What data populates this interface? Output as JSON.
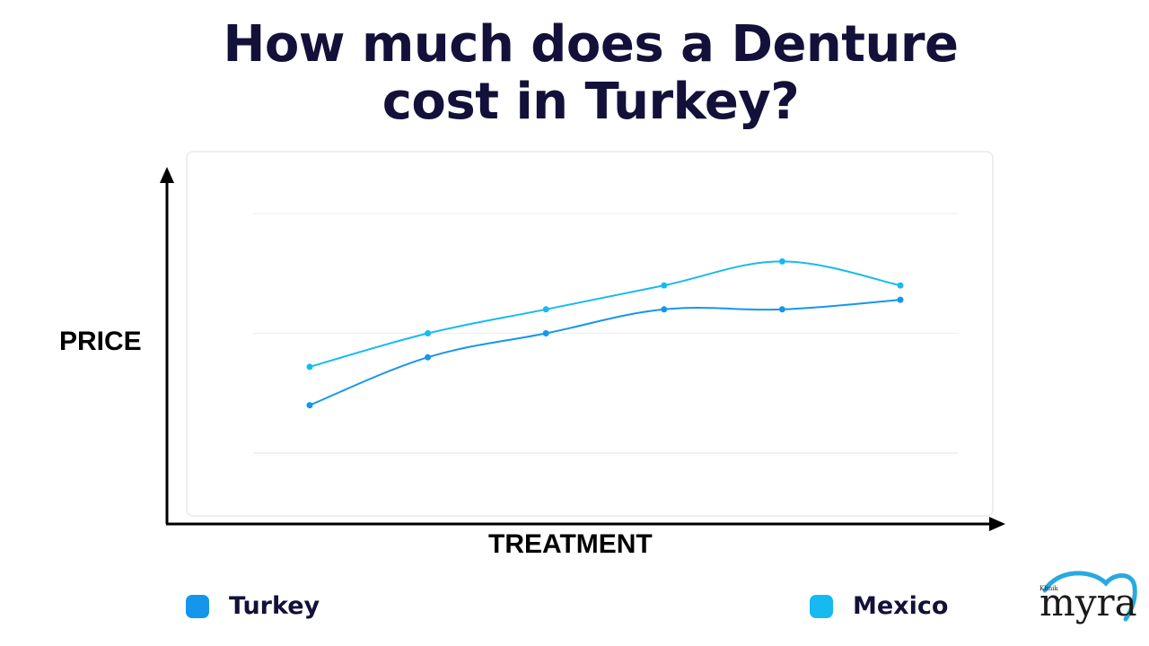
{
  "title": {
    "line1": "How much does a Denture",
    "line2": "cost in Turkey?"
  },
  "colors": {
    "title": "#13103a",
    "turkey": "#1596ec",
    "mexico": "#16baf0",
    "axis": "#000000",
    "grid": "#eeeeee",
    "logo_heart": "#27a9e1",
    "logo_text": "#1a1a1a"
  },
  "chart_data": {
    "type": "line",
    "xlabel": "TREATMENT",
    "ylabel": "PRICE",
    "x": [
      1,
      2,
      3,
      4,
      5,
      6
    ],
    "ylim": [
      0,
      5
    ],
    "grid": true,
    "legend_position": "bottom",
    "series": [
      {
        "name": "Turkey",
        "values": [
          1.0,
          2.0,
          2.5,
          3.0,
          3.0,
          3.2
        ]
      },
      {
        "name": "Mexico",
        "values": [
          1.8,
          2.5,
          3.0,
          3.5,
          4.0,
          3.5
        ]
      }
    ]
  },
  "legend": {
    "turkey_label": "Turkey",
    "mexico_label": "Mexico"
  },
  "logo": {
    "small_text": "Klinik",
    "main_text": "myra"
  }
}
